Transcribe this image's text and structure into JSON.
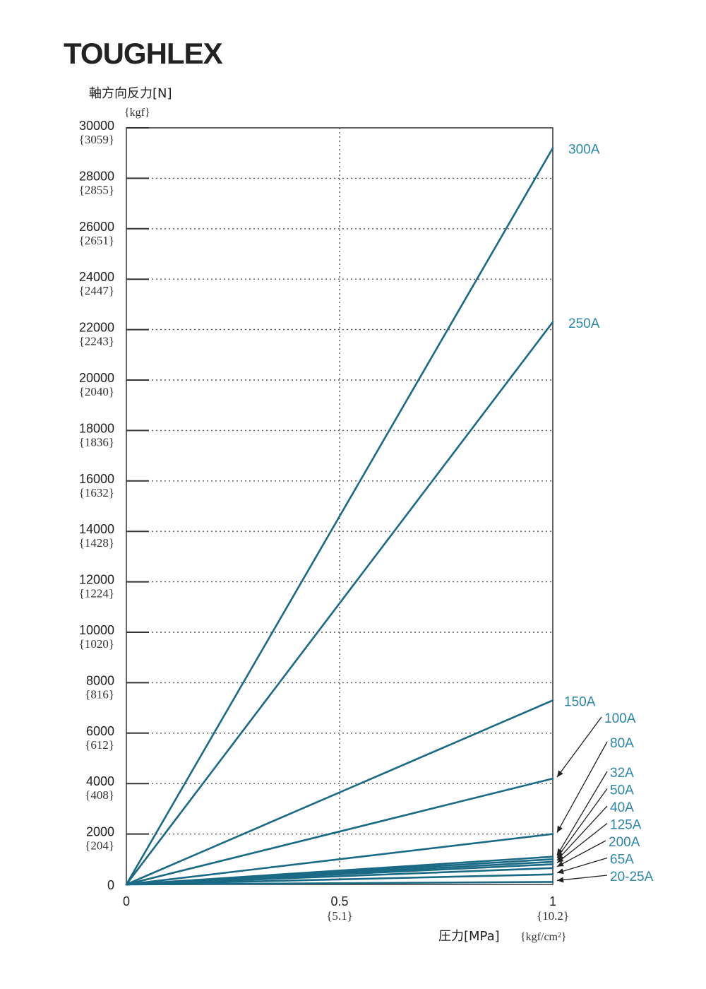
{
  "brand": "TOUGHLEX",
  "chart_data": {
    "type": "line",
    "title": "",
    "ylabel": "軸方向反力[N]",
    "ylabel_unit": "{kgf}",
    "xlabel": "圧力[MPa]",
    "xlabel_unit": "{kgf/cm²}",
    "xlim": [
      0,
      1
    ],
    "ylim": [
      0,
      30000
    ],
    "grid": "dotted",
    "line_color": "#1a6a85",
    "label_color": "#2b86a8",
    "x_ticks": [
      {
        "value": 0,
        "label": "0",
        "sub": ""
      },
      {
        "value": 0.5,
        "label": "0.5",
        "sub": "{5.1}"
      },
      {
        "value": 1,
        "label": "1",
        "sub": "{10.2}"
      }
    ],
    "y_ticks": [
      {
        "value": 30000,
        "label": "30000",
        "sub": "{3059}"
      },
      {
        "value": 28000,
        "label": "28000",
        "sub": "{2855}"
      },
      {
        "value": 26000,
        "label": "26000",
        "sub": "{2651}"
      },
      {
        "value": 24000,
        "label": "24000",
        "sub": "{2447}"
      },
      {
        "value": 22000,
        "label": "22000",
        "sub": "{2243}"
      },
      {
        "value": 20000,
        "label": "20000",
        "sub": "{2040}"
      },
      {
        "value": 18000,
        "label": "18000",
        "sub": "{1836}"
      },
      {
        "value": 16000,
        "label": "16000",
        "sub": "{1632}"
      },
      {
        "value": 14000,
        "label": "14000",
        "sub": "{1428}"
      },
      {
        "value": 12000,
        "label": "12000",
        "sub": "{1224}"
      },
      {
        "value": 10000,
        "label": "10000",
        "sub": "{1020}"
      },
      {
        "value": 8000,
        "label": "8000",
        "sub": "{816}"
      },
      {
        "value": 6000,
        "label": "6000",
        "sub": "{612}"
      },
      {
        "value": 4000,
        "label": "4000",
        "sub": "{408}"
      },
      {
        "value": 2000,
        "label": "2000",
        "sub": "{204}"
      },
      {
        "value": 0,
        "label": "0",
        "sub": ""
      }
    ],
    "series": [
      {
        "name": "300A",
        "x": [
          0,
          1
        ],
        "y": [
          0,
          29200
        ]
      },
      {
        "name": "250A",
        "x": [
          0,
          1
        ],
        "y": [
          0,
          22300
        ]
      },
      {
        "name": "150A",
        "x": [
          0,
          1
        ],
        "y": [
          0,
          7300
        ]
      },
      {
        "name": "100A",
        "x": [
          0,
          1
        ],
        "y": [
          0,
          4200
        ]
      },
      {
        "name": "80A",
        "x": [
          0,
          1
        ],
        "y": [
          0,
          2000
        ]
      },
      {
        "name": "32A",
        "x": [
          0,
          1
        ],
        "y": [
          0,
          1100
        ]
      },
      {
        "name": "50A",
        "x": [
          0,
          1
        ],
        "y": [
          0,
          1000
        ]
      },
      {
        "name": "40A",
        "x": [
          0,
          1
        ],
        "y": [
          0,
          900
        ]
      },
      {
        "name": "125A",
        "x": [
          0,
          1
        ],
        "y": [
          0,
          800
        ]
      },
      {
        "name": "200A",
        "x": [
          0,
          1
        ],
        "y": [
          0,
          650
        ]
      },
      {
        "name": "65A",
        "x": [
          0,
          1
        ],
        "y": [
          0,
          400
        ]
      },
      {
        "name": "20-25A",
        "x": [
          0,
          1
        ],
        "y": [
          0,
          100
        ]
      }
    ]
  }
}
